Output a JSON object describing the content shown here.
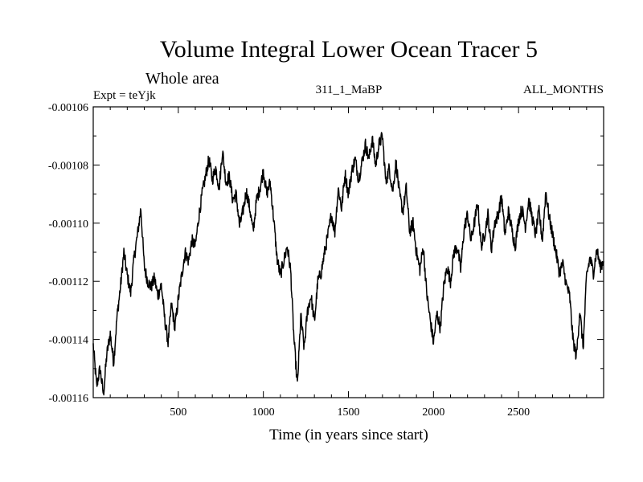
{
  "chart_data": {
    "type": "line",
    "title": "Volume Integral Lower Ocean Tracer 5",
    "subtitle": "Whole area",
    "experiment_label": "Expt = teYjk",
    "period_label": "311_1_MaBP",
    "months_label": "ALL_MONTHS",
    "xlabel": "Time (in years since start)",
    "ylabel": "",
    "xlim": [
      0,
      3000
    ],
    "ylim": [
      -0.00116,
      -0.00106
    ],
    "x_ticks": [
      500,
      1000,
      1500,
      2000,
      2500
    ],
    "x_tick_labels": [
      "500",
      "1000",
      "1500",
      "2000",
      "2500"
    ],
    "y_ticks": [
      -0.00116,
      -0.00114,
      -0.00112,
      -0.0011,
      -0.00108,
      -0.00106
    ],
    "y_tick_labels": [
      "-0.00116",
      "-0.00114",
      "-0.00112",
      "-0.00110",
      "-0.00108",
      "-0.00106"
    ],
    "grid": false,
    "series": [
      {
        "name": "Volume Integral Lower Ocean Tracer 5",
        "color": "#000000",
        "x": [
          0,
          20,
          40,
          60,
          80,
          100,
          120,
          140,
          160,
          180,
          200,
          220,
          240,
          260,
          280,
          300,
          320,
          340,
          360,
          380,
          400,
          420,
          440,
          460,
          480,
          500,
          520,
          540,
          560,
          580,
          600,
          620,
          640,
          660,
          680,
          700,
          720,
          740,
          760,
          780,
          800,
          820,
          840,
          860,
          880,
          900,
          920,
          940,
          960,
          980,
          1000,
          1020,
          1040,
          1060,
          1080,
          1100,
          1120,
          1140,
          1160,
          1180,
          1200,
          1220,
          1240,
          1260,
          1280,
          1300,
          1320,
          1340,
          1360,
          1380,
          1400,
          1420,
          1440,
          1460,
          1480,
          1500,
          1520,
          1540,
          1560,
          1580,
          1600,
          1620,
          1640,
          1660,
          1680,
          1700,
          1720,
          1740,
          1760,
          1780,
          1800,
          1820,
          1840,
          1860,
          1880,
          1900,
          1920,
          1940,
          1960,
          1980,
          2000,
          2020,
          2040,
          2060,
          2080,
          2100,
          2120,
          2140,
          2160,
          2180,
          2200,
          2220,
          2240,
          2260,
          2280,
          2300,
          2320,
          2340,
          2360,
          2380,
          2400,
          2420,
          2440,
          2460,
          2480,
          2500,
          2520,
          2540,
          2560,
          2580,
          2600,
          2620,
          2640,
          2660,
          2680,
          2700,
          2720,
          2740,
          2760,
          2780,
          2800,
          2820,
          2840,
          2860,
          2880,
          2900,
          2920,
          2940,
          2960,
          2980,
          3000
        ],
        "values": [
          -0.001142,
          -0.001156,
          -0.00115,
          -0.001159,
          -0.001145,
          -0.001138,
          -0.001148,
          -0.001132,
          -0.001122,
          -0.00111,
          -0.001118,
          -0.001124,
          -0.001112,
          -0.001104,
          -0.001095,
          -0.001115,
          -0.00112,
          -0.001122,
          -0.001119,
          -0.001125,
          -0.001121,
          -0.001133,
          -0.001141,
          -0.001128,
          -0.001136,
          -0.001126,
          -0.001118,
          -0.00111,
          -0.001113,
          -0.001106,
          -0.001108,
          -0.001098,
          -0.00109,
          -0.001084,
          -0.001078,
          -0.001085,
          -0.001081,
          -0.001088,
          -0.001075,
          -0.001086,
          -0.001084,
          -0.001092,
          -0.00109,
          -0.001101,
          -0.001096,
          -0.001089,
          -0.001095,
          -0.001103,
          -0.001092,
          -0.001088,
          -0.001082,
          -0.00109,
          -0.001086,
          -0.001098,
          -0.001112,
          -0.001118,
          -0.001113,
          -0.001108,
          -0.001116,
          -0.00114,
          -0.001156,
          -0.001132,
          -0.001143,
          -0.00113,
          -0.001125,
          -0.001134,
          -0.00112,
          -0.001117,
          -0.00111,
          -0.001104,
          -0.001097,
          -0.001103,
          -0.001088,
          -0.001095,
          -0.001083,
          -0.00109,
          -0.001082,
          -0.001078,
          -0.001085,
          -0.001079,
          -0.001073,
          -0.001078,
          -0.001071,
          -0.00108,
          -0.001073,
          -0.00107,
          -0.001086,
          -0.001081,
          -0.001089,
          -0.001079,
          -0.00109,
          -0.001096,
          -0.001088,
          -0.001103,
          -0.0011,
          -0.00111,
          -0.001116,
          -0.001108,
          -0.001124,
          -0.001133,
          -0.001141,
          -0.001131,
          -0.001136,
          -0.001122,
          -0.001115,
          -0.00112,
          -0.00111,
          -0.001108,
          -0.001116,
          -0.001102,
          -0.001097,
          -0.001106,
          -0.0011,
          -0.001093,
          -0.001108,
          -0.001104,
          -0.001097,
          -0.001109,
          -0.0011,
          -0.001097,
          -0.001091,
          -0.001104,
          -0.001096,
          -0.001102,
          -0.001108,
          -0.001099,
          -0.001095,
          -0.001101,
          -0.001092,
          -0.001098,
          -0.001104,
          -0.001096,
          -0.001106,
          -0.001089,
          -0.001098,
          -0.001104,
          -0.00111,
          -0.001117,
          -0.001114,
          -0.001121,
          -0.001125,
          -0.00114,
          -0.001146,
          -0.00113,
          -0.001143,
          -0.001118,
          -0.001112,
          -0.001117,
          -0.001109,
          -0.001115,
          -0.001113
        ]
      }
    ]
  }
}
